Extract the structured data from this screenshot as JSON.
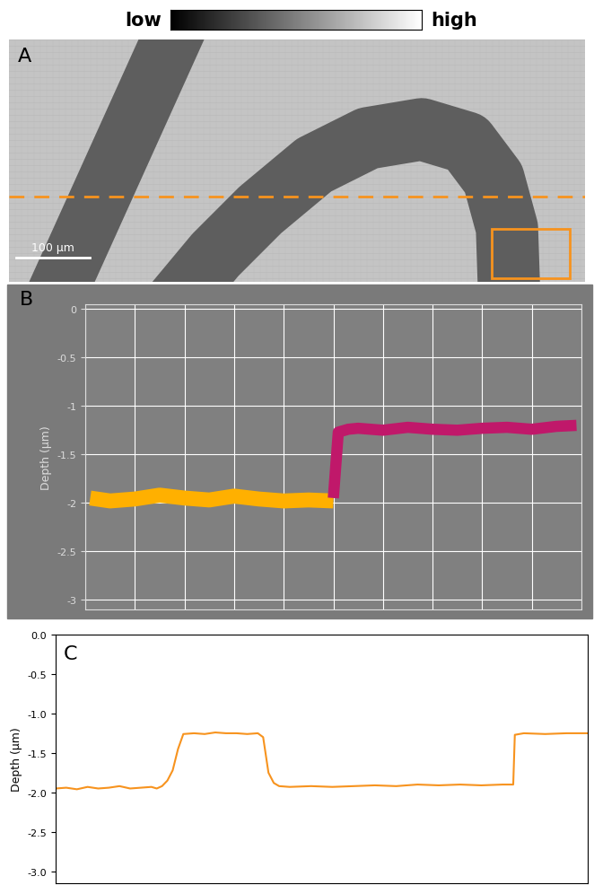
{
  "chart_data": [
    {
      "type": "image",
      "title": "A",
      "scale_bar": "100 µm",
      "colorbar": {
        "labels": [
          "low",
          "high"
        ]
      }
    },
    {
      "type": "line",
      "title": "B",
      "y_label": "Depth (µm)",
      "tick_labels": "y",
      "grid": true,
      "x": [
        0.1,
        0.5,
        1,
        1.5,
        2,
        2.5,
        3,
        3.5,
        4,
        4.5,
        5.0,
        5.1,
        5.3,
        5.5,
        6,
        6.5,
        7,
        7.5,
        8,
        8.5,
        9,
        9.5,
        9.9
      ],
      "series": [
        {
          "color": "#ffb000",
          "values": [
            -1.95,
            -1.98,
            -1.96,
            -1.92,
            -1.95,
            -1.97,
            -1.93,
            -1.96,
            -1.98,
            -1.97,
            -1.98,
            null,
            null,
            null,
            null,
            null,
            null,
            null,
            null,
            null,
            null,
            null,
            null
          ]
        },
        {
          "color": "#c0186a",
          "values": [
            null,
            null,
            null,
            null,
            null,
            null,
            null,
            null,
            null,
            null,
            -1.95,
            -1.27,
            -1.24,
            -1.23,
            -1.25,
            -1.22,
            -1.24,
            -1.25,
            -1.23,
            -1.22,
            -1.24,
            -1.21,
            -1.2
          ]
        }
      ],
      "xlim": [
        0,
        10
      ],
      "xticks": [
        0,
        1,
        2,
        3,
        4,
        5,
        6,
        7,
        8,
        9,
        10
      ],
      "ylim": [
        -3.1,
        0.05
      ],
      "yticks": [
        0,
        -0.5,
        -1,
        -1.5,
        -2,
        -2.5,
        -3
      ]
    },
    {
      "type": "line",
      "title": "C",
      "y_label": "Depth (µm)",
      "tick_labels": "y",
      "color": "#f7931e",
      "x": [
        0,
        2,
        4,
        6,
        8,
        10,
        12,
        14,
        16,
        18,
        19,
        20,
        21,
        22,
        23,
        24,
        26,
        28,
        30,
        32,
        34,
        36,
        38,
        39,
        40,
        41,
        42,
        44,
        48,
        52,
        56,
        60,
        64,
        68,
        72,
        76,
        80,
        84,
        86,
        86.3,
        88,
        92,
        96,
        100
      ],
      "values": [
        -1.95,
        -1.94,
        -1.96,
        -1.93,
        -1.95,
        -1.94,
        -1.92,
        -1.95,
        -1.94,
        -1.93,
        -1.95,
        -1.92,
        -1.85,
        -1.72,
        -1.45,
        -1.26,
        -1.25,
        -1.26,
        -1.24,
        -1.25,
        -1.25,
        -1.26,
        -1.25,
        -1.3,
        -1.75,
        -1.88,
        -1.92,
        -1.93,
        -1.92,
        -1.93,
        -1.92,
        -1.91,
        -1.92,
        -1.9,
        -1.91,
        -1.9,
        -1.91,
        -1.9,
        -1.9,
        -1.27,
        -1.25,
        -1.26,
        -1.25,
        -1.25
      ],
      "xlim": [
        0,
        100
      ],
      "xticks": [],
      "ylim": [
        -3.15,
        0
      ],
      "yticks": [
        {
          "value": 0,
          "label": "0.0"
        },
        -0.5,
        {
          "value": -1,
          "label": "-1.0"
        },
        -1.5,
        {
          "value": -2,
          "label": "-2.0"
        },
        -2.5,
        {
          "value": -3,
          "label": "-3.0"
        }
      ]
    }
  ]
}
